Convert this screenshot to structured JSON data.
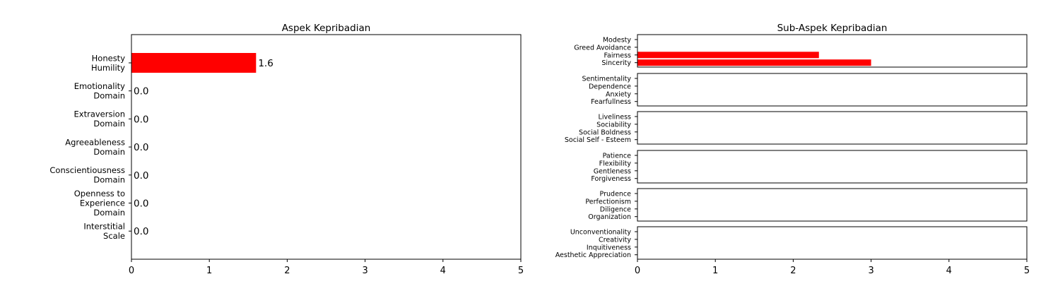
{
  "chart_data": [
    {
      "type": "bar",
      "orientation": "horizontal",
      "title": "Aspek Kepribadian",
      "xlabel": "",
      "ylabel": "",
      "xlim": [
        0,
        5
      ],
      "xticks": [
        "0",
        "1",
        "2",
        "3",
        "4",
        "5"
      ],
      "categories": [
        [
          "Honesty",
          "Humility"
        ],
        [
          "Emotionality",
          "Domain"
        ],
        [
          "Extraversion",
          "Domain"
        ],
        [
          "Agreeableness",
          "Domain"
        ],
        [
          "Conscientiousness",
          "Domain"
        ],
        [
          "Openness to",
          "Experience",
          "Domain"
        ],
        [
          "Interstitial",
          "Scale"
        ]
      ],
      "values": [
        1.6,
        0.0,
        0.0,
        0.0,
        0.0,
        0.0,
        0.0
      ],
      "value_labels": [
        "1.6",
        "0.0",
        "0.0",
        "0.0",
        "0.0",
        "0.0",
        "0.0"
      ],
      "bar_color": "#ff0000",
      "grid": false
    },
    {
      "type": "bar",
      "orientation": "horizontal",
      "title": "Sub-Aspek Kepribadian",
      "xlabel": "",
      "ylabel": "",
      "xlim": [
        0,
        5
      ],
      "xticks": [
        "0",
        "1",
        "2",
        "3",
        "4",
        "5"
      ],
      "bar_color": "#ff0000",
      "grid": false,
      "panels": [
        {
          "categories": [
            "Modesty",
            "Greed Avoidance",
            "Fairness",
            "Sincerity"
          ],
          "values": [
            0,
            0,
            2.33,
            3.0
          ]
        },
        {
          "categories": [
            "Sentimentality",
            "Dependence",
            "Anxiety",
            "Fearfullness"
          ],
          "values": [
            0,
            0,
            0,
            0
          ]
        },
        {
          "categories": [
            "Liveliness",
            "Sociability",
            "Social Boldness",
            "Social Self - Esteem"
          ],
          "values": [
            0,
            0,
            0,
            0
          ]
        },
        {
          "categories": [
            "Patience",
            "Flexibility",
            "Gentleness",
            "Forgiveness"
          ],
          "values": [
            0,
            0,
            0,
            0
          ]
        },
        {
          "categories": [
            "Prudence",
            "Perfectionism",
            "Diligence",
            "Organization"
          ],
          "values": [
            0,
            0,
            0,
            0
          ]
        },
        {
          "categories": [
            "Unconventionality",
            "Creativity",
            "Inquitiveness",
            "Aesthetic Appreciation"
          ],
          "values": [
            0,
            0,
            0,
            0
          ]
        }
      ]
    }
  ]
}
